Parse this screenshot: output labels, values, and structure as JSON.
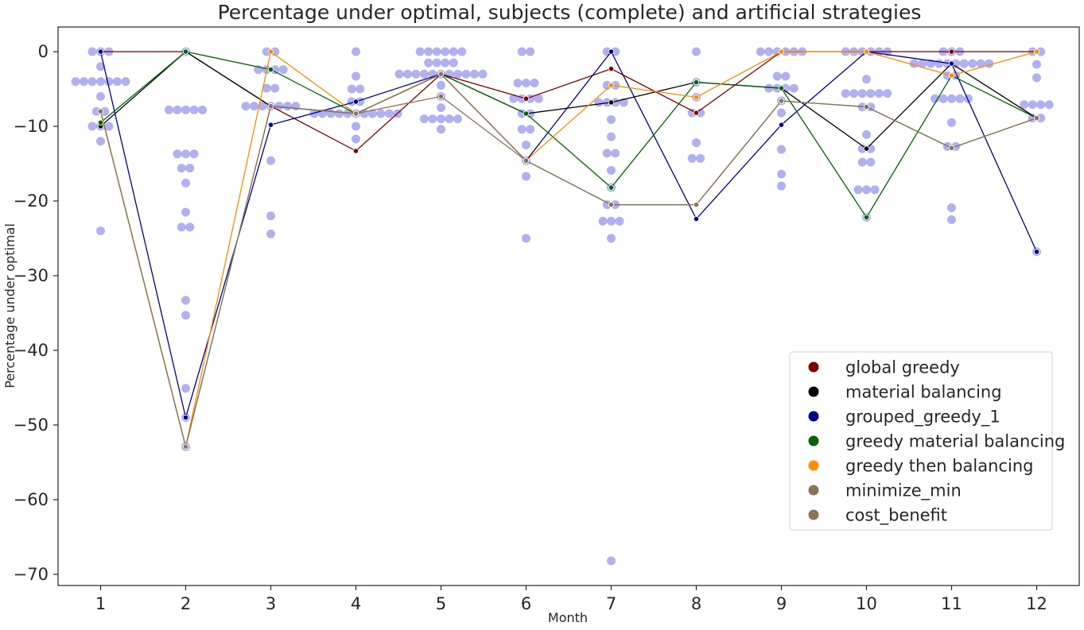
{
  "chart_data": {
    "type": "scatter",
    "title": "Percentage under optimal, subjects (complete) and artificial strategies",
    "xlabel": "Month",
    "ylabel": "Percentage under optimal",
    "xlim": [
      0.5,
      12.5
    ],
    "ylim": [
      -71.5,
      3.3
    ],
    "x_ticks": [
      1,
      2,
      3,
      4,
      5,
      6,
      7,
      8,
      9,
      10,
      11,
      12
    ],
    "y_ticks": [
      0,
      -10,
      -20,
      -30,
      -40,
      -50,
      -60,
      -70
    ],
    "grid": false,
    "legend_position": "lower-right",
    "subjects": {
      "color": "#6464e6",
      "points": {
        "1": [
          0,
          0,
          0,
          -2,
          -4,
          -4,
          -4,
          -4,
          -4,
          -4,
          -4,
          -6,
          -8,
          -8,
          -10,
          -10,
          -10,
          -12,
          -24
        ],
        "2": [
          0,
          -7.8,
          -7.8,
          -7.8,
          -7.8,
          -7.8,
          -13.7,
          -13.7,
          -13.7,
          -15.6,
          -15.6,
          -17.6,
          -21.5,
          -23.5,
          -23.5,
          -33.3,
          -35.3,
          -45.1,
          -49,
          -52.9
        ],
        "3": [
          0,
          0,
          -2.4,
          -2.4,
          -2.4,
          -2.4,
          -4.9,
          -4.9,
          -7.3,
          -7.3,
          -7.3,
          -7.3,
          -7.3,
          -7.3,
          -7.3,
          -14.6,
          -22,
          -24.4
        ],
        "4": [
          0,
          -3.3,
          -5,
          -5,
          -6.7,
          -6.7,
          -8.3,
          -8.3,
          -8.3,
          -8.3,
          -8.3,
          -8.3,
          -8.3,
          -8.3,
          -8.3,
          -8.3,
          -8.3,
          -10,
          -11.7
        ],
        "5": [
          0,
          0,
          0,
          0,
          0,
          0,
          -1.5,
          -1.5,
          -1.5,
          -1.5,
          -3,
          -3,
          -3,
          -3,
          -3,
          -3,
          -3,
          -3,
          -3,
          -3,
          -3,
          -4.5,
          -6,
          -7.5,
          -9,
          -9,
          -9,
          -9,
          -9,
          -10.4
        ],
        "6": [
          0,
          0,
          -4.2,
          -4.2,
          -4.2,
          -6.3,
          -6.3,
          -6.3,
          -6.3,
          -8.3,
          -8.3,
          -10.4,
          -10.4,
          -12.5,
          -14.6,
          -16.7,
          -25
        ],
        "7": [
          0,
          0,
          -4.5,
          -4.5,
          -6.8,
          -6.8,
          -6.8,
          -6.8,
          -9.1,
          -11.4,
          -13.6,
          -13.6,
          -15.9,
          -18.2,
          -20.5,
          -20.5,
          -22.7,
          -22.7,
          -22.7,
          -25,
          -68.2
        ],
        "8": [
          0,
          -4.1,
          -6.1,
          -8.2,
          -8.2,
          -12.2,
          -14.3,
          -14.3
        ],
        "9": [
          0,
          0,
          0,
          0,
          0,
          0,
          -3.3,
          -3.3,
          -4.9,
          -4.9,
          -4.9,
          -4.9,
          -6.6,
          -8.2,
          -13.1,
          -16.4,
          -18
        ],
        "10": [
          0,
          0,
          0,
          0,
          0,
          0,
          -3.7,
          -5.6,
          -5.6,
          -5.6,
          -5.6,
          -5.6,
          -5.6,
          -7.4,
          -7.4,
          -11.1,
          -13,
          -13,
          -14.8,
          -14.8,
          -18.5,
          -18.5,
          -18.5,
          -22.2
        ],
        "11": [
          0,
          0,
          0,
          -1.6,
          -1.6,
          -1.6,
          -1.6,
          -1.6,
          -1.6,
          -1.6,
          -1.6,
          -1.6,
          -1.6,
          -3.2,
          -3.2,
          -6.3,
          -6.3,
          -6.3,
          -6.3,
          -6.3,
          -9.5,
          -12.7,
          -12.7,
          -20.9,
          -22.5
        ],
        "12": [
          0,
          0,
          -1.7,
          -3.5,
          -7.1,
          -7.1,
          -7.1,
          -7.1,
          -8.9,
          -8.9,
          -26.8
        ]
      }
    },
    "series": [
      {
        "name": "global greedy",
        "color": "#800000",
        "values": [
          0,
          0,
          -7.3,
          -13.3,
          -3,
          -6.3,
          -2.3,
          -8.2,
          0,
          0,
          0,
          0
        ]
      },
      {
        "name": "material balancing",
        "color": "#000000",
        "values": [
          -10,
          0,
          -7.3,
          -8.3,
          -3,
          -8.3,
          -6.8,
          -4.1,
          -4.9,
          -13,
          -1.6,
          -8.9
        ]
      },
      {
        "name": "grouped_greedy_1",
        "color": "#00008b",
        "values": [
          0,
          -49,
          -9.8,
          -6.7,
          -3,
          -14.6,
          0,
          -22.4,
          -9.8,
          0,
          -1.6,
          -26.8
        ]
      },
      {
        "name": "greedy material balancing",
        "color": "#006400",
        "values": [
          -9.5,
          0,
          -2.4,
          -8.3,
          -3,
          -8.3,
          -18.2,
          -4.1,
          -4.9,
          -22.2,
          -3.2,
          -8.9
        ]
      },
      {
        "name": "greedy then balancing",
        "color": "#ff8c00",
        "values": [
          -8,
          -52.9,
          0,
          -8.3,
          -3,
          -14.6,
          -4.5,
          -6.1,
          0,
          0,
          -3.2,
          0
        ]
      },
      {
        "name": "minimize_min",
        "color": "#8b7355",
        "values": [
          -8,
          -52.9,
          -7.3,
          -8.3,
          -6,
          -14.6,
          -20.5,
          -20.5,
          -6.6,
          -7.4,
          -12.9,
          -8.9
        ]
      },
      {
        "name": "cost_benefit",
        "color": "#8b7355",
        "values": [
          -8,
          -52.9,
          -7.3,
          -8.3,
          -3,
          -14.6,
          -20.5,
          -20.5,
          -6.6,
          -7.4,
          -12.9,
          -8.9
        ]
      }
    ]
  }
}
